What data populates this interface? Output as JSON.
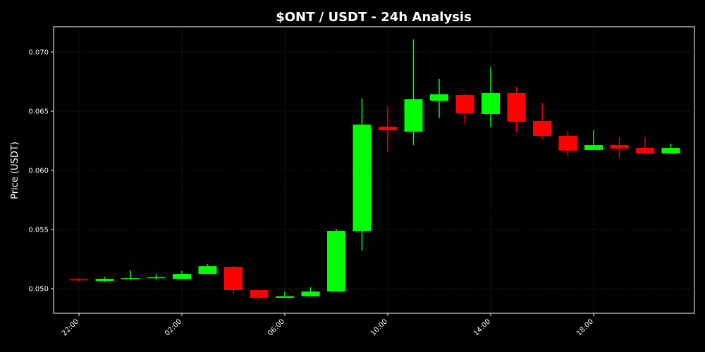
{
  "chart_data": {
    "type": "candlestick",
    "title": "$ONT / USDT - 24h Analysis",
    "y_label": "Price (USDT)",
    "categories": [
      "22:00",
      null,
      null,
      null,
      "02:00",
      null,
      null,
      null,
      "06:00",
      null,
      null,
      null,
      "10:00",
      null,
      null,
      null,
      "14:00",
      null,
      null,
      null,
      "18:00",
      null,
      null,
      null
    ],
    "open": [
      0.0508,
      0.05066,
      0.05083,
      0.0509,
      0.05083,
      0.05125,
      0.05185,
      0.04988,
      0.04923,
      0.04935,
      0.04976,
      0.05488,
      0.06369,
      0.06327,
      0.06589,
      0.06637,
      0.06476,
      0.06655,
      0.06417,
      0.06292,
      0.06173,
      0.06214,
      0.0619,
      0.06143
    ],
    "high": [
      0.0509,
      0.051,
      0.05155,
      0.05125,
      0.05149,
      0.05208,
      0.0519,
      0.04988,
      0.04976,
      0.05012,
      0.05506,
      0.06607,
      0.06542,
      0.07107,
      0.06774,
      0.06643,
      0.06875,
      0.06708,
      0.06571,
      0.06333,
      0.06339,
      0.0628,
      0.0628,
      0.06226
    ],
    "low": [
      0.0506,
      0.0506,
      0.0508,
      0.05077,
      0.05083,
      0.05125,
      0.04952,
      0.04899,
      0.04923,
      0.04935,
      0.04976,
      0.05321,
      0.06155,
      0.06214,
      0.0644,
      0.06387,
      0.06369,
      0.06321,
      0.06262,
      0.06119,
      0.06173,
      0.06107,
      0.06143,
      0.06143
    ],
    "close": [
      0.0507,
      0.05083,
      0.05089,
      0.05097,
      0.05125,
      0.0519,
      0.04988,
      0.04923,
      0.04935,
      0.04976,
      0.05488,
      0.06387,
      0.06339,
      0.06601,
      0.06643,
      0.06482,
      0.06655,
      0.06411,
      0.06292,
      0.06167,
      0.06214,
      0.06185,
      0.06143,
      0.0619
    ],
    "up_color": "#00ff00",
    "down_color": "#ff0000",
    "ylim": [
      0.04792,
      0.07214
    ],
    "yticks": [
      {
        "value": 0.05,
        "label": "0.050"
      },
      {
        "value": 0.055,
        "label": "0.055"
      },
      {
        "value": 0.06,
        "label": "0.060"
      },
      {
        "value": 0.065,
        "label": "0.065"
      },
      {
        "value": 0.07,
        "label": "0.070"
      }
    ],
    "grid": true
  }
}
